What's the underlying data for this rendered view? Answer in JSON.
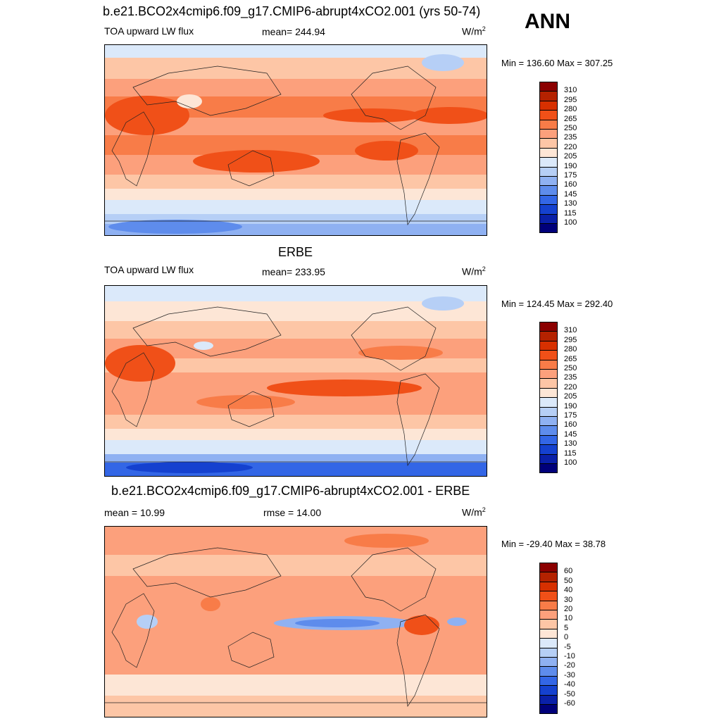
{
  "season": "ANN",
  "panels": [
    {
      "title": "b.e21.BCO2x4cmip6.f09_g17.CMIP6-abrupt4xCO2.001 (yrs 50-74)",
      "left_label": "TOA upward LW flux",
      "center_label": "mean= 244.94",
      "units": "W/m",
      "units_exp": "2",
      "minmax": "Min = 136.60 Max = 307.25",
      "colorbar_ticks": [
        "310",
        "295",
        "280",
        "265",
        "250",
        "235",
        "220",
        "205",
        "190",
        "175",
        "160",
        "145",
        "130",
        "115",
        "100"
      ]
    },
    {
      "title": "ERBE",
      "left_label": "TOA upward LW flux",
      "center_label": "mean= 233.95",
      "units": "W/m",
      "units_exp": "2",
      "minmax": "Min = 124.45 Max = 292.40",
      "colorbar_ticks": [
        "310",
        "295",
        "280",
        "265",
        "250",
        "235",
        "220",
        "205",
        "190",
        "175",
        "160",
        "145",
        "130",
        "115",
        "100"
      ]
    },
    {
      "title": "b.e21.BCO2x4cmip6.f09_g17.CMIP6-abrupt4xCO2.001 - ERBE",
      "left_label": "mean =  10.99",
      "center_label": "rmse =  14.00",
      "units": "W/m",
      "units_exp": "2",
      "minmax": "Min = -29.40 Max =  38.78",
      "colorbar_ticks": [
        "60",
        "50",
        "40",
        "30",
        "20",
        "10",
        "5",
        "0",
        "-5",
        "-10",
        "-20",
        "-30",
        "-40",
        "-50",
        "-60"
      ]
    }
  ],
  "colors": {
    "scale": [
      "#8b0000",
      "#b42200",
      "#d73000",
      "#f05018",
      "#f87c48",
      "#fca07c",
      "#fdc6a6",
      "#fde6d6",
      "#dbe9fa",
      "#b6cff6",
      "#8fb1f2",
      "#5e8cec",
      "#3366e6",
      "#1541cf",
      "#0a20a8",
      "#00007a"
    ]
  }
}
